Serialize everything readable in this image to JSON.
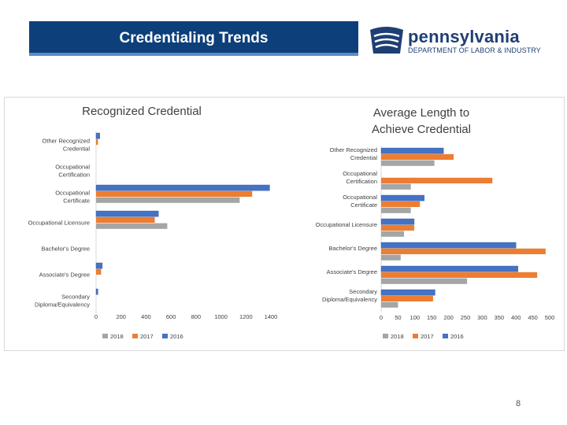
{
  "slide": {
    "title": "Credentialing Trends",
    "page_number": "8",
    "logo_name": "pennsylvania",
    "logo_sub": "DEPARTMENT OF LABOR & INDUSTRY"
  },
  "colors": {
    "series_2018": "#a5a5a5",
    "series_2017": "#ed7d31",
    "series_2016": "#4472c4",
    "title_bar": "#0d3f7a"
  },
  "chart_data": [
    {
      "type": "bar",
      "orientation": "horizontal",
      "title": "Recognized Credential",
      "categories": [
        "Other Recognized Credential",
        "Occupational Certification",
        "Occupational Certificate",
        "Occupational Licensure",
        "Bachelor's Degree",
        "Associate's Degree",
        "Secondary Diploma/Equivalency"
      ],
      "series": [
        {
          "name": "2016",
          "values": [
            30,
            0,
            1390,
            500,
            0,
            50,
            15
          ]
        },
        {
          "name": "2017",
          "values": [
            15,
            0,
            1250,
            470,
            0,
            40,
            0
          ]
        },
        {
          "name": "2018",
          "values": [
            0,
            0,
            1150,
            570,
            0,
            0,
            0
          ]
        }
      ],
      "xlim": [
        0,
        1400
      ],
      "xticks": [
        "0",
        "200",
        "400",
        "600",
        "800",
        "1000",
        "1200",
        "1400"
      ],
      "legend": [
        "2018",
        "2017",
        "2016"
      ],
      "legend_position": "bottom"
    },
    {
      "type": "bar",
      "orientation": "horizontal",
      "title": "Average Length to Achieve Credential",
      "categories": [
        "Other Recognized Credential",
        "Occupational Certification",
        "Occupational Certificate",
        "Occupational Licensure",
        "Bachelor's Degree",
        "Associate's Degree",
        "Secondary Diploma/Equivalency"
      ],
      "series": [
        {
          "name": "2016",
          "values": [
            185,
            0,
            128,
            98,
            400,
            406,
            160
          ]
        },
        {
          "name": "2017",
          "values": [
            215,
            330,
            115,
            98,
            488,
            463,
            154
          ]
        },
        {
          "name": "2018",
          "values": [
            158,
            88,
            88,
            68,
            58,
            255,
            50
          ]
        }
      ],
      "xlim": [
        0,
        500
      ],
      "xticks": [
        "0",
        "50",
        "100",
        "150",
        "200",
        "250",
        "300",
        "350",
        "400",
        "450",
        "500"
      ],
      "legend": [
        "2018",
        "2017",
        "2016"
      ],
      "legend_position": "bottom"
    }
  ]
}
